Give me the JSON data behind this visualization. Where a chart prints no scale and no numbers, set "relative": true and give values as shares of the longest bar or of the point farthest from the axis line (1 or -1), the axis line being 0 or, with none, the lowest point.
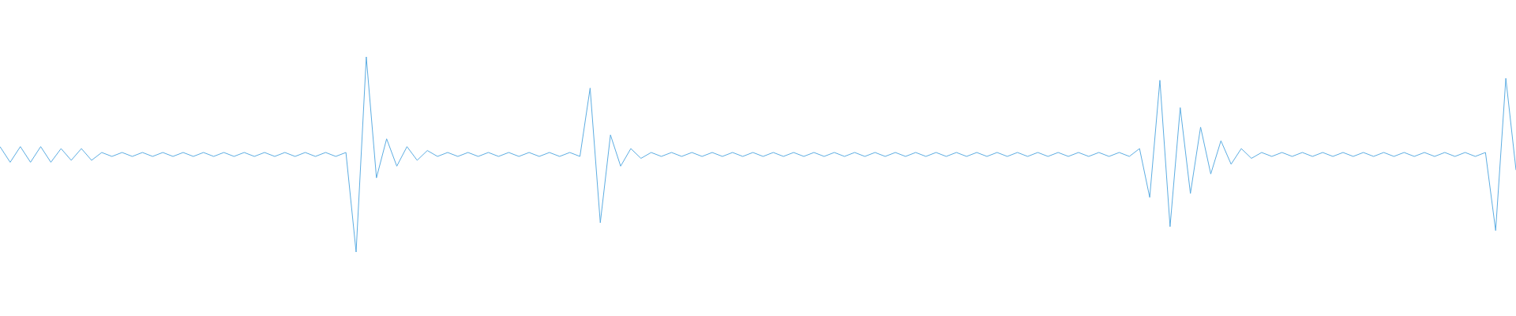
{
  "chart_data": {
    "type": "line",
    "relative": true,
    "marker": "none",
    "color": "#5dade2",
    "categories": [
      null,
      null,
      null,
      null,
      null,
      null,
      null,
      null,
      null,
      null,
      null,
      null,
      null,
      null,
      null,
      null,
      null,
      null,
      null,
      null,
      null,
      null,
      null,
      null,
      null,
      null,
      null,
      null,
      null,
      null,
      null,
      null,
      null,
      null,
      null,
      null,
      null,
      null,
      null,
      null,
      null,
      null,
      null,
      null,
      null,
      null,
      null,
      null,
      null,
      null,
      null,
      null,
      null,
      null,
      null,
      null,
      null,
      null,
      null,
      null,
      null,
      null,
      null,
      null,
      null,
      null,
      null,
      null,
      null,
      null,
      null,
      null,
      null,
      null,
      null,
      null,
      null,
      null,
      null,
      null,
      null,
      null,
      null,
      null,
      null,
      null,
      null,
      null,
      null,
      null,
      null,
      null,
      null,
      null,
      null,
      null,
      null,
      null,
      null,
      null,
      null,
      null,
      null,
      null,
      null,
      null,
      null,
      null,
      null,
      null,
      null,
      null,
      null,
      null,
      null,
      null,
      null,
      null,
      null,
      null,
      null,
      null,
      null,
      null,
      null,
      null,
      null,
      null,
      null,
      null,
      null,
      null,
      null,
      null,
      null,
      null,
      null,
      null,
      null,
      null,
      null,
      null,
      null,
      null,
      null,
      null,
      null,
      null,
      null,
      null
    ],
    "values": [
      0.54,
      0.46,
      0.54,
      0.46,
      0.54,
      0.46,
      0.53,
      0.47,
      0.53,
      0.47,
      0.51,
      0.49,
      0.51,
      0.49,
      0.51,
      0.49,
      0.51,
      0.49,
      0.51,
      0.49,
      0.51,
      0.49,
      0.51,
      0.49,
      0.51,
      0.49,
      0.51,
      0.49,
      0.51,
      0.49,
      0.51,
      0.49,
      0.51,
      0.49,
      0.51,
      0,
      1,
      0.38,
      0.58,
      0.44,
      0.54,
      0.47,
      0.52,
      0.49,
      0.51,
      0.49,
      0.51,
      0.49,
      0.51,
      0.49,
      0.51,
      0.49,
      0.51,
      0.49,
      0.51,
      0.49,
      0.51,
      0.49,
      0.84,
      0.15,
      0.6,
      0.44,
      0.53,
      0.48,
      0.51,
      0.49,
      0.51,
      0.49,
      0.51,
      0.49,
      0.51,
      0.49,
      0.51,
      0.49,
      0.51,
      0.49,
      0.51,
      0.49,
      0.51,
      0.49,
      0.51,
      0.49,
      0.51,
      0.49,
      0.51,
      0.49,
      0.51,
      0.49,
      0.51,
      0.49,
      0.51,
      0.49,
      0.51,
      0.49,
      0.51,
      0.49,
      0.51,
      0.49,
      0.51,
      0.49,
      0.51,
      0.49,
      0.51,
      0.49,
      0.51,
      0.49,
      0.51,
      0.49,
      0.51,
      0.49,
      0.51,
      0.49,
      0.53,
      0.28,
      0.88,
      0.13,
      0.74,
      0.3,
      0.64,
      0.4,
      0.57,
      0.45,
      0.53,
      0.48,
      0.51,
      0.49,
      0.51,
      0.49,
      0.51,
      0.49,
      0.51,
      0.49,
      0.51,
      0.49,
      0.51,
      0.49,
      0.51,
      0.49,
      0.51,
      0.49,
      0.51,
      0.49,
      0.51,
      0.49,
      0.51,
      0.49,
      0.51,
      0.11,
      0.89,
      0.42
    ]
  }
}
